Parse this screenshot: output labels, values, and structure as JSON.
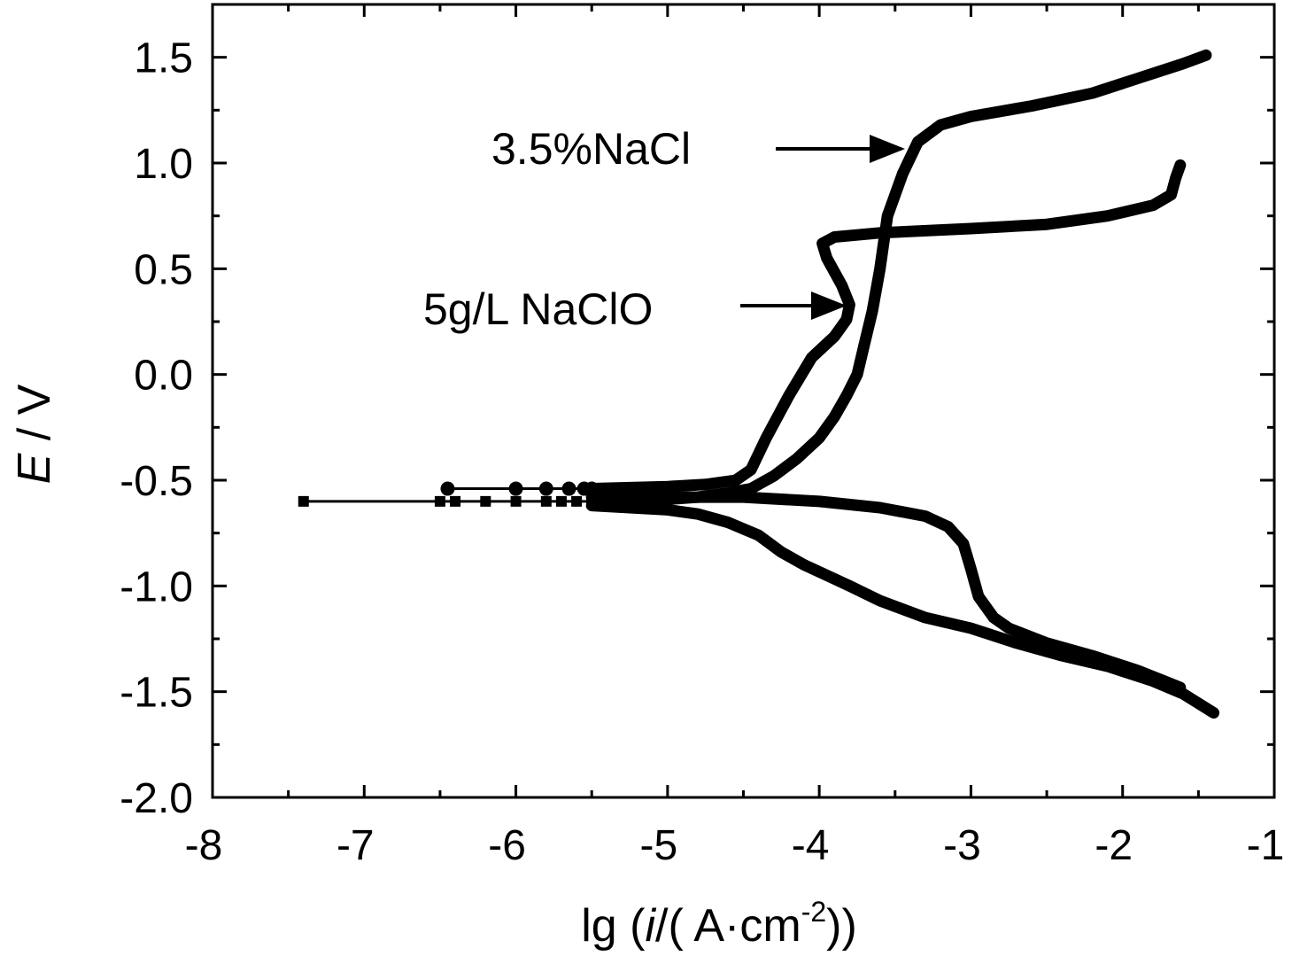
{
  "chart_data": {
    "type": "line",
    "xlabel": {
      "prefix": "lg (",
      "var": "i",
      "mid": "/( A·cm",
      "sup": "-2",
      "suffix": "))"
    },
    "ylabel": {
      "var": "E",
      "suffix": " / V"
    },
    "xlim": [
      -8,
      -1
    ],
    "ylim": [
      -2.0,
      1.75
    ],
    "xticks": [
      "-8",
      "-7",
      "-6",
      "-5",
      "-4",
      "-3",
      "-2",
      "-1"
    ],
    "yticks": [
      "-2.0",
      "-1.5",
      "-1.0",
      "-0.5",
      "0.0",
      "0.5",
      "1.0",
      "1.5"
    ],
    "grid": false,
    "legend": "none",
    "annotations": [
      {
        "text": "3.5%NaCl",
        "series": "3.5%NaCl"
      },
      {
        "text": "5g/L NaClO",
        "series": "5g/L NaClO"
      }
    ],
    "series": [
      {
        "name": "3.5%NaCl",
        "color": "#000000",
        "anodic": [
          [
            -5.5,
            -0.6
          ],
          [
            -5.0,
            -0.59
          ],
          [
            -4.8,
            -0.58
          ],
          [
            -4.6,
            -0.56
          ],
          [
            -4.45,
            -0.54
          ],
          [
            -4.3,
            -0.48
          ],
          [
            -4.15,
            -0.4
          ],
          [
            -4.0,
            -0.3
          ],
          [
            -3.9,
            -0.2
          ],
          [
            -3.82,
            -0.1
          ],
          [
            -3.75,
            0.0
          ],
          [
            -3.7,
            0.15
          ],
          [
            -3.65,
            0.3
          ],
          [
            -3.6,
            0.5
          ],
          [
            -3.55,
            0.75
          ],
          [
            -3.45,
            0.95
          ],
          [
            -3.35,
            1.1
          ],
          [
            -3.2,
            1.18
          ],
          [
            -3.0,
            1.22
          ],
          [
            -2.6,
            1.27
          ],
          [
            -2.2,
            1.33
          ],
          [
            -1.9,
            1.4
          ],
          [
            -1.6,
            1.47
          ],
          [
            -1.45,
            1.51
          ]
        ],
        "cathodic": [
          [
            -5.5,
            -0.62
          ],
          [
            -5.0,
            -0.64
          ],
          [
            -4.8,
            -0.66
          ],
          [
            -4.6,
            -0.7
          ],
          [
            -4.4,
            -0.76
          ],
          [
            -4.25,
            -0.84
          ],
          [
            -4.1,
            -0.9
          ],
          [
            -3.95,
            -0.95
          ],
          [
            -3.8,
            -1.0
          ],
          [
            -3.6,
            -1.07
          ],
          [
            -3.3,
            -1.15
          ],
          [
            -3.0,
            -1.2
          ],
          [
            -2.7,
            -1.27
          ],
          [
            -2.4,
            -1.33
          ],
          [
            -2.1,
            -1.38
          ],
          [
            -1.8,
            -1.45
          ],
          [
            -1.6,
            -1.51
          ],
          [
            -1.4,
            -1.6
          ]
        ],
        "corrosion_trace": [
          [
            -7.4,
            -0.6
          ],
          [
            -6.5,
            -0.6
          ],
          [
            -6.4,
            -0.6
          ],
          [
            -6.2,
            -0.6
          ],
          [
            -6.0,
            -0.6
          ],
          [
            -5.8,
            -0.6
          ],
          [
            -5.7,
            -0.6
          ],
          [
            -5.6,
            -0.6
          ],
          [
            -5.5,
            -0.6
          ]
        ]
      },
      {
        "name": "5g/L NaClO",
        "color": "#000000",
        "anodic": [
          [
            -5.5,
            -0.54
          ],
          [
            -5.0,
            -0.53
          ],
          [
            -4.75,
            -0.52
          ],
          [
            -4.55,
            -0.5
          ],
          [
            -4.45,
            -0.45
          ],
          [
            -4.35,
            -0.3
          ],
          [
            -4.2,
            -0.1
          ],
          [
            -4.05,
            0.08
          ],
          [
            -3.9,
            0.18
          ],
          [
            -3.82,
            0.26
          ],
          [
            -3.8,
            0.33
          ],
          [
            -3.85,
            0.42
          ],
          [
            -3.95,
            0.55
          ],
          [
            -3.98,
            0.62
          ],
          [
            -3.9,
            0.65
          ],
          [
            -3.6,
            0.67
          ],
          [
            -3.0,
            0.69
          ],
          [
            -2.5,
            0.71
          ],
          [
            -2.1,
            0.75
          ],
          [
            -1.8,
            0.8
          ],
          [
            -1.68,
            0.85
          ],
          [
            -1.65,
            0.93
          ],
          [
            -1.62,
            0.99
          ]
        ],
        "cathodic": [
          [
            -5.5,
            -0.58
          ],
          [
            -5.0,
            -0.58
          ],
          [
            -4.5,
            -0.58
          ],
          [
            -4.0,
            -0.6
          ],
          [
            -3.6,
            -0.63
          ],
          [
            -3.3,
            -0.67
          ],
          [
            -3.15,
            -0.72
          ],
          [
            -3.05,
            -0.8
          ],
          [
            -3.0,
            -0.92
          ],
          [
            -2.95,
            -1.05
          ],
          [
            -2.85,
            -1.15
          ],
          [
            -2.75,
            -1.2
          ],
          [
            -2.5,
            -1.27
          ],
          [
            -2.2,
            -1.33
          ],
          [
            -1.9,
            -1.4
          ],
          [
            -1.62,
            -1.48
          ]
        ],
        "corrosion_trace": [
          [
            -6.45,
            -0.54
          ],
          [
            -6.0,
            -0.54
          ],
          [
            -5.8,
            -0.54
          ],
          [
            -5.65,
            -0.54
          ],
          [
            -5.55,
            -0.54
          ],
          [
            -5.5,
            -0.54
          ]
        ]
      }
    ]
  }
}
